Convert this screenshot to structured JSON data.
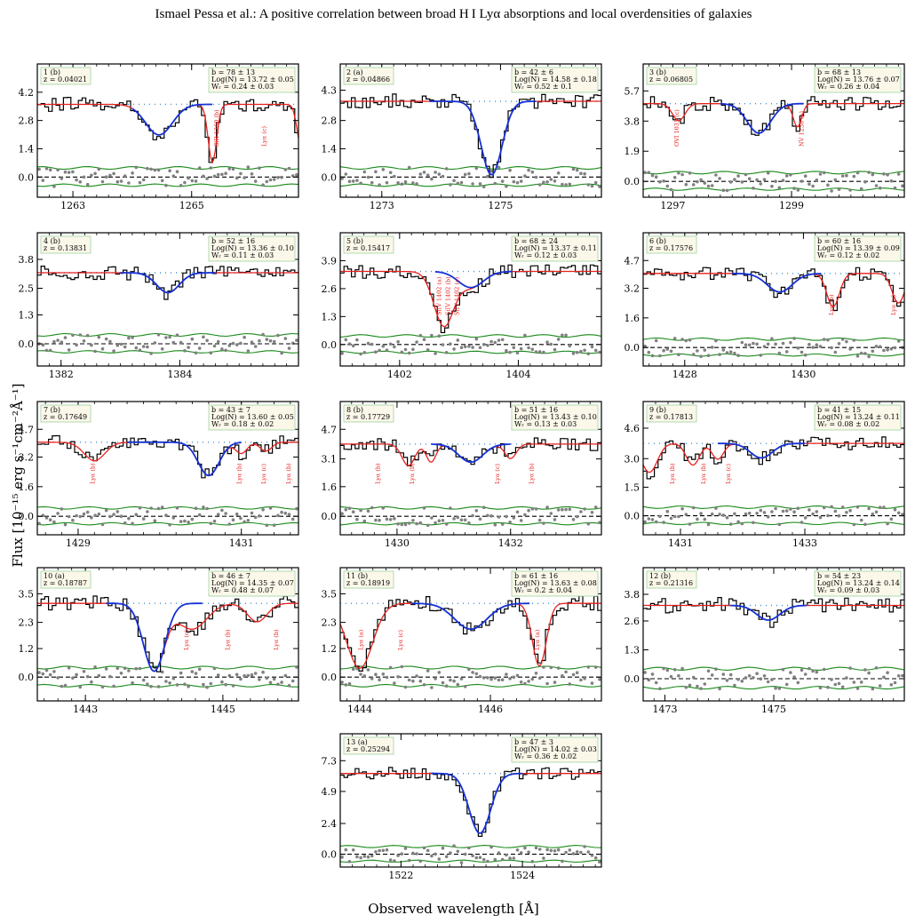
{
  "header": "Ismael Pessa  et al.: A positive correlation between broad H I Lyα absorptions and local overdensities of galaxies",
  "ylabel": "Flux [10⁻¹⁵ erg s⁻¹cm⁻²Å⁻¹]",
  "xlabel": "Observed wavelength [Å]",
  "chart_data": [
    {
      "type": "line",
      "panel": "1 (b)",
      "z": "z = 0.04021",
      "b": "b = 78 ± 13",
      "logN": "Log(N) = 13.72 ± 0.05",
      "Wr": "Wᵣ = 0.24 ± 0.03",
      "xlim": [
        1262.4,
        1266.8
      ],
      "ylim": [
        -1.0,
        5.6
      ],
      "yticks": [
        "4.2",
        "2.8",
        "1.4",
        "0.0"
      ],
      "xticks": [
        "1263",
        "1265"
      ],
      "continuum": 3.6,
      "noise": 0.45,
      "seed": 1,
      "blue": {
        "center": 1264.45,
        "depth": 0.42,
        "width": 0.32,
        "from": 1264.0,
        "to": 1265.35
      },
      "red": [
        {
          "center": 1264.45,
          "depth": 0.42,
          "width": 0.32
        },
        {
          "center": 1265.35,
          "depth": 0.8,
          "width": 0.1
        },
        {
          "center": 1266.85,
          "depth": 0.6,
          "width": 0.1
        }
      ],
      "labels": [
        {
          "x": 1265.45,
          "text": "SiII 1260 (b)"
        },
        {
          "x": 1266.25,
          "text": "Lyα (c)"
        }
      ]
    },
    {
      "type": "line",
      "panel": "2 (a)",
      "z": "z = 0.04866",
      "b": "b = 42 ± 6",
      "logN": "Log(N) = 14.58 ± 0.18",
      "Wr": "Wᵣ = 0.52 ± 0.1",
      "xlim": [
        1272.3,
        1276.7
      ],
      "ylim": [
        -1.0,
        5.6
      ],
      "yticks": [
        "4.3",
        "2.8",
        "1.4",
        "0.0"
      ],
      "xticks": [
        "1273",
        "1275"
      ],
      "continuum": 3.75,
      "noise": 0.45,
      "seed": 2,
      "blue": {
        "center": 1274.85,
        "depth": 0.97,
        "width": 0.25,
        "from": 1273.8,
        "to": 1275.6
      },
      "red": [
        {
          "center": 1274.85,
          "depth": 0.97,
          "width": 0.25
        }
      ],
      "labels": []
    },
    {
      "type": "line",
      "panel": "3 (b)",
      "z": "z = 0.06805",
      "b": "b = 68 ± 13",
      "logN": "Log(N) = 13.76 ± 0.07",
      "Wr": "Wᵣ = 0.26 ± 0.04",
      "xlim": [
        1296.5,
        1300.9
      ],
      "ylim": [
        -1.0,
        7.4
      ],
      "yticks": [
        "5.7",
        "3.8",
        "1.9",
        "0.0"
      ],
      "xticks": [
        "1297",
        "1299"
      ],
      "continuum": 4.9,
      "noise": 0.55,
      "seed": 3,
      "blue": {
        "center": 1298.45,
        "depth": 0.38,
        "width": 0.28,
        "from": 1297.8,
        "to": 1299.2
      },
      "red": [
        {
          "center": 1297.1,
          "depth": 0.22,
          "width": 0.15
        },
        {
          "center": 1298.45,
          "depth": 0.38,
          "width": 0.28
        },
        {
          "center": 1299.1,
          "depth": 0.3,
          "width": 0.1
        }
      ],
      "labels": [
        {
          "x": 1297.1,
          "text": "OVI 1031 (c)"
        },
        {
          "x": 1299.2,
          "text": "NV 1238 (a)"
        }
      ]
    },
    {
      "type": "line",
      "panel": "4 (b)",
      "z": "z = 0.13831",
      "b": "b = 52 ± 16",
      "logN": "Log(N) = 13.36 ± 0.10",
      "Wr": "Wᵣ = 0.11 ± 0.03",
      "xlim": [
        1381.6,
        1386.0
      ],
      "ylim": [
        -1.0,
        5.0
      ],
      "yticks": [
        "3.8",
        "2.5",
        "1.3",
        "0.0"
      ],
      "xticks": [
        "1382",
        "1384"
      ],
      "continuum": 3.2,
      "noise": 0.4,
      "seed": 4,
      "blue": {
        "center": 1383.8,
        "depth": 0.28,
        "width": 0.27,
        "from": 1383.0,
        "to": 1384.6
      },
      "red": [
        {
          "center": 1383.8,
          "depth": 0.28,
          "width": 0.27
        }
      ],
      "labels": []
    },
    {
      "type": "line",
      "panel": "5 (b)",
      "z": "z = 0.15417",
      "b": "b = 68 ± 24",
      "logN": "Log(N) = 13.37 ± 0.11",
      "Wr": "Wᵣ = 0.12 ± 0.03",
      "xlim": [
        1401.0,
        1405.4
      ],
      "ylim": [
        -1.0,
        5.2
      ],
      "yticks": [
        "3.9",
        "2.6",
        "1.3",
        "0.0"
      ],
      "xticks": [
        "1402",
        "1404"
      ],
      "continuum": 3.4,
      "noise": 0.4,
      "seed": 5,
      "blue": {
        "center": 1403.2,
        "depth": 0.22,
        "width": 0.3,
        "from": 1402.6,
        "to": 1403.9
      },
      "red": [
        {
          "center": 1402.75,
          "depth": 0.75,
          "width": 0.24
        },
        {
          "center": 1403.2,
          "depth": 0.22,
          "width": 0.3
        }
      ],
      "labels": [
        {
          "x": 1402.7,
          "text": "SiIV 1402 (a)"
        },
        {
          "x": 1402.85,
          "text": "SiIV 1402 (b)"
        },
        {
          "x": 1403.0,
          "text": "SiIV 1402 (c)"
        }
      ]
    },
    {
      "type": "line",
      "panel": "6 (b)",
      "z": "z = 0.17576",
      "b": "b = 60 ± 16",
      "logN": "Log(N) = 13.39 ± 0.09",
      "Wr": "Wᵣ = 0.12 ± 0.02",
      "xlim": [
        1427.3,
        1431.7
      ],
      "ylim": [
        -1.0,
        6.2
      ],
      "yticks": [
        "4.7",
        "3.2",
        "1.6",
        "0.0"
      ],
      "xticks": [
        "1428",
        "1430"
      ],
      "continuum": 4.0,
      "noise": 0.45,
      "seed": 6,
      "blue": {
        "center": 1429.6,
        "depth": 0.25,
        "width": 0.3,
        "from": 1428.8,
        "to": 1430.3
      },
      "red": [
        {
          "center": 1429.6,
          "depth": 0.25,
          "width": 0.3
        },
        {
          "center": 1430.5,
          "depth": 0.45,
          "width": 0.15
        },
        {
          "center": 1431.6,
          "depth": 0.4,
          "width": 0.15
        }
      ],
      "labels": [
        {
          "x": 1430.5,
          "text": "Lyα (b)"
        },
        {
          "x": 1431.55,
          "text": "Lyα (a)"
        }
      ]
    },
    {
      "type": "line",
      "panel": "7 (b)",
      "z": "z = 0.17649",
      "b": "b = 43 ± 7",
      "logN": "Log(N) = 13.60 ± 0.05",
      "Wr": "Wᵣ = 0.18 ± 0.02",
      "xlim": [
        1428.5,
        1431.7
      ],
      "ylim": [
        -1.0,
        6.2
      ],
      "yticks": [
        "4.7",
        "3.2",
        "1.6",
        "0.0"
      ],
      "xticks": [
        "1429",
        "1431"
      ],
      "continuum": 4.0,
      "noise": 0.45,
      "seed": 7,
      "blue": {
        "center": 1430.6,
        "depth": 0.45,
        "width": 0.18,
        "from": 1429.6,
        "to": 1431.0
      },
      "red": [
        {
          "center": 1429.2,
          "depth": 0.25,
          "width": 0.18
        },
        {
          "center": 1430.6,
          "depth": 0.45,
          "width": 0.18
        },
        {
          "center": 1431.0,
          "depth": 0.15,
          "width": 0.1
        },
        {
          "center": 1431.3,
          "depth": 0.12,
          "width": 0.1
        }
      ],
      "labels": [
        {
          "x": 1429.2,
          "text": "Lyα (b)"
        },
        {
          "x": 1431.0,
          "text": "Lyα (b)"
        },
        {
          "x": 1431.3,
          "text": "Lyα (c)"
        },
        {
          "x": 1431.6,
          "text": "Lyα (b)"
        }
      ]
    },
    {
      "type": "line",
      "panel": "8 (b)",
      "z": "z = 0.17729",
      "b": "b = 51 ± 16",
      "logN": "Log(N) = 13.43 ± 0.10",
      "Wr": "Wᵣ = 0.13 ± 0.03",
      "xlim": [
        1429.0,
        1433.6
      ],
      "ylim": [
        -1.0,
        6.2
      ],
      "yticks": [
        "4.7",
        "3.1",
        "1.6",
        "0.0"
      ],
      "xticks": [
        "1430",
        "1432"
      ],
      "continuum": 3.9,
      "noise": 0.45,
      "seed": 8,
      "blue": {
        "center": 1431.3,
        "depth": 0.25,
        "width": 0.3,
        "from": 1430.6,
        "to": 1432.0
      },
      "red": [
        {
          "center": 1430.2,
          "depth": 0.3,
          "width": 0.16
        },
        {
          "center": 1430.6,
          "depth": 0.25,
          "width": 0.12
        },
        {
          "center": 1431.3,
          "depth": 0.25,
          "width": 0.3
        },
        {
          "center": 1432.0,
          "depth": 0.2,
          "width": 0.14
        }
      ],
      "labels": [
        {
          "x": 1429.7,
          "text": "Lyα (b)"
        },
        {
          "x": 1430.3,
          "text": "Lyα (b)"
        },
        {
          "x": 1431.8,
          "text": "Lyα (c)"
        },
        {
          "x": 1432.4,
          "text": "Lyα (b)"
        }
      ]
    },
    {
      "type": "line",
      "panel": "9 (b)",
      "z": "z = 0.17813",
      "b": "b = 41 ± 15",
      "logN": "Log(N) = 13.24 ± 0.11",
      "Wr": "Wᵣ = 0.08 ± 0.02",
      "xlim": [
        1430.4,
        1434.6
      ],
      "ylim": [
        -1.0,
        6.0
      ],
      "yticks": [
        "4.6",
        "3.0",
        "1.5",
        "0.0"
      ],
      "xticks": [
        "1431",
        "1433"
      ],
      "continuum": 3.8,
      "noise": 0.45,
      "seed": 9,
      "blue": {
        "center": 1432.3,
        "depth": 0.2,
        "width": 0.25,
        "from": 1431.6,
        "to": 1433.0
      },
      "red": [
        {
          "center": 1430.5,
          "depth": 0.4,
          "width": 0.18
        },
        {
          "center": 1431.2,
          "depth": 0.3,
          "width": 0.15
        },
        {
          "center": 1431.6,
          "depth": 0.22,
          "width": 0.13
        },
        {
          "center": 1432.3,
          "depth": 0.2,
          "width": 0.25
        }
      ],
      "labels": [
        {
          "x": 1430.9,
          "text": "Lyα (b)"
        },
        {
          "x": 1431.4,
          "text": "Lyα (b)"
        },
        {
          "x": 1431.8,
          "text": "Lyα (c)"
        }
      ]
    },
    {
      "type": "line",
      "panel": "10 (a)",
      "z": "z = 0.18787",
      "b": "b = 46 ± 7",
      "logN": "Log(N) = 14.35 ± 0.07",
      "Wr": "Wᵣ = 0.48 ± 0.07",
      "xlim": [
        1442.3,
        1446.1
      ],
      "ylim": [
        -1.0,
        4.6
      ],
      "yticks": [
        "3.5",
        "2.3",
        "1.2",
        "0.0"
      ],
      "xticks": [
        "1443",
        "1445"
      ],
      "continuum": 3.1,
      "noise": 0.4,
      "seed": 10,
      "blue": {
        "center": 1444.0,
        "depth": 0.92,
        "width": 0.22,
        "from": 1443.3,
        "to": 1444.7
      },
      "red": [
        {
          "center": 1444.0,
          "depth": 0.92,
          "width": 0.22
        },
        {
          "center": 1444.55,
          "depth": 0.35,
          "width": 0.3
        },
        {
          "center": 1445.5,
          "depth": 0.25,
          "width": 0.2
        }
      ],
      "labels": [
        {
          "x": 1444.5,
          "text": "Lyα (c)"
        },
        {
          "x": 1445.1,
          "text": "Lyα (b)"
        },
        {
          "x": 1445.8,
          "text": "Lyα (b)"
        }
      ]
    },
    {
      "type": "line",
      "panel": "11 (b)",
      "z": "z = 0.18919",
      "b": "b = 61 ± 16",
      "logN": "Log(N) = 13.63 ± 0.08",
      "Wr": "Wᵣ = 0.2 ± 0.04",
      "xlim": [
        1443.7,
        1447.7
      ],
      "ylim": [
        -1.0,
        4.6
      ],
      "yticks": [
        "3.5",
        "2.3",
        "1.2",
        "0.0"
      ],
      "xticks": [
        "1444",
        "1446"
      ],
      "continuum": 3.1,
      "noise": 0.4,
      "seed": 11,
      "blue": {
        "center": 1445.7,
        "depth": 0.35,
        "width": 0.35,
        "from": 1444.8,
        "to": 1446.6
      },
      "red": [
        {
          "center": 1444.0,
          "depth": 0.88,
          "width": 0.28
        },
        {
          "center": 1445.7,
          "depth": 0.35,
          "width": 0.35
        },
        {
          "center": 1446.75,
          "depth": 0.85,
          "width": 0.15
        }
      ],
      "labels": [
        {
          "x": 1444.05,
          "text": "Lyα (a)"
        },
        {
          "x": 1444.65,
          "text": "Lyα (c)"
        },
        {
          "x": 1446.75,
          "text": "Lyα (a)"
        }
      ]
    },
    {
      "type": "line",
      "panel": "12 (b)",
      "z": "z = 0.21316",
      "b": "b = 54 ± 23",
      "logN": "Log(N) = 13.24 ± 0.14",
      "Wr": "Wᵣ = 0.09 ± 0.03",
      "xlim": [
        1472.6,
        1477.4
      ],
      "ylim": [
        -1.0,
        5.0
      ],
      "yticks": [
        "3.8",
        "2.6",
        "1.3",
        "0.0"
      ],
      "xticks": [
        "1473",
        "1475"
      ],
      "continuum": 3.3,
      "noise": 0.45,
      "seed": 12,
      "blue": {
        "center": 1474.9,
        "depth": 0.2,
        "width": 0.3,
        "from": 1474.2,
        "to": 1475.6
      },
      "red": [
        {
          "center": 1474.9,
          "depth": 0.2,
          "width": 0.3
        }
      ],
      "labels": []
    },
    {
      "type": "line",
      "panel": "13 (a)",
      "z": "z = 0.25294",
      "b": "b = 47 ± 3",
      "logN": "Log(N) = 14.02 ± 0.03",
      "Wr": "Wᵣ = 0.36 ± 0.02",
      "xlim": [
        1521.0,
        1525.3
      ],
      "ylim": [
        -1.0,
        9.4
      ],
      "yticks": [
        "7.3",
        "4.9",
        "2.4",
        "0.0"
      ],
      "xticks": [
        "1522",
        "1524"
      ],
      "continuum": 6.3,
      "noise": 0.6,
      "seed": 13,
      "blue": {
        "center": 1523.3,
        "depth": 0.74,
        "width": 0.25,
        "from": 1522.5,
        "to": 1524.0
      },
      "red": [
        {
          "center": 1523.3,
          "depth": 0.74,
          "width": 0.25
        }
      ],
      "labels": []
    }
  ]
}
